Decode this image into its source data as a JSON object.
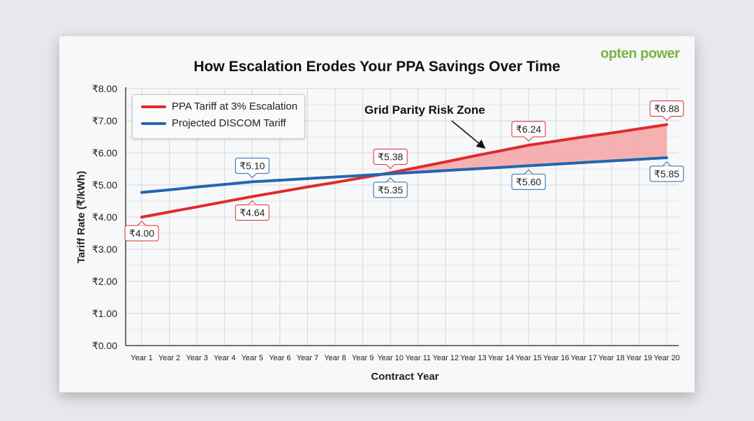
{
  "logo": "opten power",
  "chart_data": {
    "type": "line",
    "title": "How Escalation Erodes Your PPA Savings Over Time",
    "xlabel": "Contract Year",
    "ylabel": "Tariff Rate (₹/kWh)",
    "categories": [
      "Year 1",
      "Year 2",
      "Year 3",
      "Year 4",
      "Year 5",
      "Year 6",
      "Year 7",
      "Year 8",
      "Year 9",
      "Year 10",
      "Year 11",
      "Year 12",
      "Year 13",
      "Year 14",
      "Year 15",
      "Year 16",
      "Year 17",
      "Year 18",
      "Year 19",
      "Year 20"
    ],
    "yticks": [
      "₹0.00",
      "₹1.00",
      "₹2.00",
      "₹3.00",
      "₹4.00",
      "₹5.00",
      "₹6.00",
      "₹7.00",
      "₹8.00"
    ],
    "ylim": [
      0,
      8
    ],
    "grid": true,
    "legend_position": "top-left",
    "series": [
      {
        "name": "PPA Tariff at 3% Escalation",
        "color": "#e02b2b",
        "values": [
          4.0,
          4.16,
          4.32,
          4.48,
          4.64,
          4.79,
          4.94,
          5.08,
          5.23,
          5.38,
          5.55,
          5.72,
          5.9,
          6.07,
          6.24,
          6.37,
          6.5,
          6.62,
          6.75,
          6.88
        ]
      },
      {
        "name": "Projected DISCOM Tariff",
        "color": "#2266b0",
        "values": [
          4.77,
          4.85,
          4.94,
          5.02,
          5.1,
          5.15,
          5.2,
          5.25,
          5.3,
          5.35,
          5.4,
          5.45,
          5.5,
          5.55,
          5.6,
          5.65,
          5.7,
          5.75,
          5.8,
          5.85
        ]
      }
    ],
    "data_labels": [
      {
        "series": 0,
        "year": 1,
        "text": "₹4.00"
      },
      {
        "series": 0,
        "year": 5,
        "text": "₹4.64"
      },
      {
        "series": 0,
        "year": 10,
        "text": "₹5.38"
      },
      {
        "series": 0,
        "year": 15,
        "text": "₹6.24"
      },
      {
        "series": 0,
        "year": 20,
        "text": "₹6.88"
      },
      {
        "series": 1,
        "year": 5,
        "text": "₹5.10"
      },
      {
        "series": 1,
        "year": 10,
        "text": "₹5.35"
      },
      {
        "series": 1,
        "year": 15,
        "text": "₹5.60"
      },
      {
        "series": 1,
        "year": 20,
        "text": "₹5.85"
      }
    ],
    "annotation": "Grid Parity Risk Zone",
    "shaded_region_color": "#f4a3a6"
  }
}
